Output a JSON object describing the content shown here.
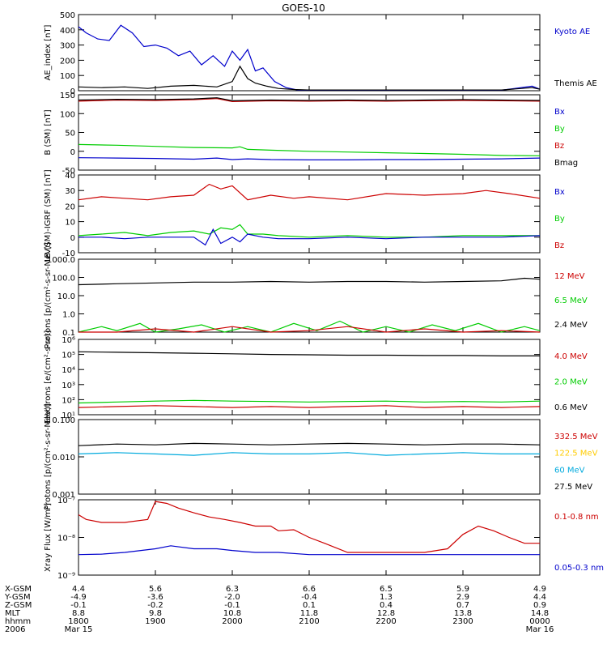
{
  "title": "GOES-10",
  "x_axis": {
    "ticks": [
      "1800",
      "1900",
      "2000",
      "2100",
      "2200",
      "2300",
      "0000"
    ],
    "rows": [
      {
        "label": "X-GSM",
        "values": [
          "4.4",
          "5.6",
          "6.3",
          "6.6",
          "6.5",
          "5.9",
          "4.9"
        ]
      },
      {
        "label": "Y-GSM",
        "values": [
          "-4.9",
          "-3.6",
          "-2.0",
          "-0.4",
          "1.3",
          "2.9",
          "4.4"
        ]
      },
      {
        "label": "Z-GSM",
        "values": [
          "-0.1",
          "-0.2",
          "-0.1",
          "0.1",
          "0.4",
          "0.7",
          "0.9"
        ]
      },
      {
        "label": "MLT",
        "values": [
          "8.8",
          "9.8",
          "10.8",
          "11.8",
          "12.8",
          "13.8",
          "14.8"
        ]
      },
      {
        "label": "hhmm",
        "values": [
          "1800",
          "1900",
          "2000",
          "2100",
          "2200",
          "2300",
          "0000"
        ]
      },
      {
        "label": "2006",
        "values": [
          "Mar 15",
          "",
          "",
          "",
          "",
          "",
          "Mar 16"
        ]
      }
    ]
  },
  "colors": {
    "blue": "#0000cc",
    "red": "#cc0000",
    "green": "#00cc00",
    "black": "#000000",
    "cyan": "#00aadd",
    "yellow": "#ffcc00"
  },
  "chart_data": [
    {
      "type": "line",
      "panel": 1,
      "ylabel": "AE_index [nT]",
      "ylim": [
        0,
        500
      ],
      "yticks": [
        0,
        100,
        200,
        300,
        400,
        500
      ],
      "legend": [
        {
          "name": "Kyoto AE",
          "color": "#0000cc"
        },
        {
          "name": "Themis AE",
          "color": "#000000"
        }
      ],
      "series": [
        {
          "name": "Kyoto AE",
          "color": "#0000cc",
          "x": [
            18.0,
            18.1,
            18.25,
            18.4,
            18.55,
            18.7,
            18.85,
            19.0,
            19.15,
            19.3,
            19.45,
            19.6,
            19.75,
            19.9,
            20.0,
            20.1,
            20.2,
            20.3,
            20.4,
            20.55,
            20.7,
            20.85,
            21.0,
            21.5,
            22.0,
            22.5,
            23.0,
            23.5,
            23.9,
            24.0
          ],
          "y": [
            420,
            380,
            340,
            330,
            430,
            380,
            290,
            300,
            280,
            230,
            260,
            170,
            230,
            160,
            260,
            200,
            270,
            130,
            150,
            60,
            20,
            5,
            3,
            3,
            3,
            4,
            3,
            3,
            30,
            10
          ]
        },
        {
          "name": "Themis AE",
          "color": "#000000",
          "x": [
            18.0,
            18.3,
            18.6,
            18.9,
            19.2,
            19.5,
            19.8,
            20.0,
            20.1,
            20.2,
            20.3,
            20.45,
            20.6,
            20.8,
            21.0,
            21.5,
            22.0,
            22.5,
            23.0,
            23.5,
            23.9,
            24.0
          ],
          "y": [
            25,
            20,
            25,
            15,
            30,
            35,
            25,
            60,
            160,
            80,
            50,
            30,
            15,
            8,
            5,
            5,
            5,
            5,
            5,
            5,
            20,
            10
          ]
        }
      ]
    },
    {
      "type": "line",
      "panel": 2,
      "ylabel": "B (SM) [nT]",
      "ylim": [
        -50,
        150
      ],
      "yticks": [
        -50,
        0,
        50,
        100,
        150
      ],
      "legend": [
        {
          "name": "Bx",
          "color": "#0000cc"
        },
        {
          "name": "By",
          "color": "#00cc00"
        },
        {
          "name": "Bz",
          "color": "#cc0000"
        },
        {
          "name": "Bmag",
          "color": "#000000"
        }
      ],
      "series": [
        {
          "name": "Bz",
          "color": "#cc0000",
          "x": [
            18.0,
            18.5,
            19.0,
            19.5,
            19.8,
            20.0,
            20.5,
            21.0,
            21.5,
            22.0,
            22.5,
            23.0,
            23.5,
            24.0
          ],
          "y": [
            133,
            136,
            135,
            137,
            140,
            132,
            134,
            133,
            134,
            133,
            134,
            135,
            134,
            133
          ]
        },
        {
          "name": "Bmag",
          "color": "#000000",
          "x": [
            18.0,
            18.5,
            19.0,
            19.5,
            19.8,
            20.0,
            20.5,
            21.0,
            21.5,
            22.0,
            22.5,
            23.0,
            23.5,
            24.0
          ],
          "y": [
            136,
            138,
            137,
            139,
            142,
            134,
            136,
            135,
            136,
            135,
            136,
            137,
            136,
            135
          ]
        },
        {
          "name": "By",
          "color": "#00cc00",
          "x": [
            18.0,
            18.5,
            19.0,
            19.5,
            20.0,
            20.1,
            20.2,
            20.5,
            21.0,
            21.5,
            22.0,
            22.5,
            23.0,
            23.5,
            24.0
          ],
          "y": [
            18,
            16,
            13,
            10,
            9,
            12,
            5,
            3,
            0,
            -2,
            -4,
            -6,
            -8,
            -11,
            -12
          ]
        },
        {
          "name": "Bx",
          "color": "#0000cc",
          "x": [
            18.0,
            18.5,
            19.0,
            19.5,
            19.8,
            20.0,
            20.2,
            20.5,
            21.0,
            21.5,
            22.0,
            22.5,
            23.0,
            23.5,
            24.0
          ],
          "y": [
            -17,
            -18,
            -19,
            -21,
            -18,
            -22,
            -20,
            -22,
            -23,
            -23,
            -22,
            -22,
            -21,
            -20,
            -18
          ]
        }
      ]
    },
    {
      "type": "line",
      "panel": 3,
      "ylabel": "B (SM)-IGRF (SM) [nT]",
      "ylim": [
        -10,
        40
      ],
      "yticks": [
        -10,
        0,
        10,
        20,
        30,
        40
      ],
      "legend": [
        {
          "name": "Bx",
          "color": "#0000cc"
        },
        {
          "name": "By",
          "color": "#00cc00"
        },
        {
          "name": "Bz",
          "color": "#cc0000"
        }
      ],
      "series": [
        {
          "name": "Bz",
          "color": "#cc0000",
          "x": [
            18.0,
            18.3,
            18.6,
            18.9,
            19.2,
            19.5,
            19.7,
            19.85,
            20.0,
            20.2,
            20.5,
            20.8,
            21.0,
            21.5,
            22.0,
            22.5,
            23.0,
            23.3,
            23.6,
            24.0
          ],
          "y": [
            24,
            26,
            25,
            24,
            26,
            27,
            34,
            31,
            33,
            24,
            27,
            25,
            26,
            24,
            28,
            27,
            28,
            30,
            28,
            25
          ]
        },
        {
          "name": "By",
          "color": "#00cc00",
          "x": [
            18.0,
            18.3,
            18.6,
            18.9,
            19.2,
            19.5,
            19.7,
            19.85,
            20.0,
            20.1,
            20.2,
            20.4,
            20.6,
            21.0,
            21.5,
            22.0,
            22.5,
            23.0,
            23.5,
            24.0
          ],
          "y": [
            1,
            2,
            3,
            1,
            3,
            4,
            2,
            6,
            5,
            8,
            2,
            2,
            1,
            0,
            1,
            0,
            0,
            1,
            1,
            1
          ]
        },
        {
          "name": "Bx",
          "color": "#0000cc",
          "x": [
            18.0,
            18.3,
            18.6,
            18.9,
            19.2,
            19.5,
            19.65,
            19.75,
            19.85,
            20.0,
            20.1,
            20.2,
            20.4,
            20.6,
            21.0,
            21.5,
            22.0,
            22.5,
            23.0,
            23.5,
            24.0
          ],
          "y": [
            0,
            0,
            -1,
            0,
            0,
            0,
            -5,
            5,
            -4,
            0,
            -3,
            2,
            0,
            -1,
            -1,
            0,
            -1,
            0,
            0,
            0,
            1
          ]
        }
      ]
    },
    {
      "type": "line",
      "panel": 4,
      "yscale": "log",
      "ylabel": "Protons [p/(cm²-s-sr-MeV)]",
      "ylim": [
        0.1,
        1000.0
      ],
      "yticks": [
        "0.1",
        "1.0",
        "10.0",
        "100.0",
        "1000.0"
      ],
      "legend": [
        {
          "name": "12 MeV",
          "color": "#cc0000"
        },
        {
          "name": "6.5 MeV",
          "color": "#00cc00"
        },
        {
          "name": "2.4 MeV",
          "color": "#000000"
        }
      ],
      "series": [
        {
          "name": "2.4 MeV",
          "color": "#000000",
          "x": [
            18.0,
            18.5,
            19.0,
            19.5,
            20.0,
            20.5,
            21.0,
            21.5,
            22.0,
            22.5,
            23.0,
            23.5,
            23.8,
            24.0
          ],
          "y": [
            40,
            45,
            50,
            55,
            55,
            60,
            55,
            60,
            60,
            55,
            60,
            65,
            90,
            80
          ]
        },
        {
          "name": "6.5 MeV",
          "color": "#00cc00",
          "x": [
            18.0,
            18.3,
            18.5,
            18.8,
            19.0,
            19.3,
            19.6,
            19.9,
            20.2,
            20.5,
            20.8,
            21.1,
            21.4,
            21.7,
            22.0,
            22.3,
            22.6,
            22.9,
            23.2,
            23.5,
            23.8,
            24.0
          ],
          "y": [
            0.1,
            0.2,
            0.12,
            0.3,
            0.1,
            0.15,
            0.25,
            0.1,
            0.2,
            0.1,
            0.3,
            0.12,
            0.4,
            0.1,
            0.2,
            0.1,
            0.25,
            0.12,
            0.3,
            0.1,
            0.2,
            0.12
          ]
        },
        {
          "name": "12 MeV",
          "color": "#cc0000",
          "x": [
            18.0,
            18.5,
            19.0,
            19.5,
            20.0,
            20.5,
            21.0,
            21.5,
            22.0,
            22.5,
            23.0,
            23.5,
            24.0
          ],
          "y": [
            0.1,
            0.1,
            0.15,
            0.1,
            0.2,
            0.1,
            0.12,
            0.2,
            0.1,
            0.15,
            0.1,
            0.12,
            0.1
          ]
        }
      ]
    },
    {
      "type": "line",
      "panel": 5,
      "yscale": "log",
      "ylabel": "Electrons [e/(cm²-s-sr)]",
      "ylim": [
        10,
        1000000
      ],
      "yticks": [
        "10¹",
        "10²",
        "10³",
        "10⁴",
        "10⁵",
        "10⁶"
      ],
      "legend": [
        {
          "name": "4.0 MeV",
          "color": "#cc0000"
        },
        {
          "name": "2.0 MeV",
          "color": "#00cc00"
        },
        {
          "name": "0.6 MeV",
          "color": "#000000"
        }
      ],
      "series": [
        {
          "name": "0.6 MeV",
          "color": "#000000",
          "x": [
            18.0,
            18.5,
            19.0,
            19.5,
            20.0,
            20.5,
            21.0,
            21.5,
            22.0,
            22.5,
            23.0,
            23.5,
            24.0
          ],
          "y": [
            150000,
            140000,
            130000,
            120000,
            110000,
            100000,
            95000,
            90000,
            90000,
            85000,
            85000,
            80000,
            80000
          ]
        },
        {
          "name": "2.0 MeV",
          "color": "#00cc00",
          "x": [
            18.0,
            18.5,
            19.0,
            19.5,
            20.0,
            20.5,
            21.0,
            21.5,
            22.0,
            22.5,
            23.0,
            23.5,
            24.0
          ],
          "y": [
            60,
            70,
            80,
            90,
            80,
            75,
            70,
            75,
            80,
            70,
            75,
            70,
            80
          ]
        },
        {
          "name": "4.0 MeV",
          "color": "#cc0000",
          "x": [
            18.0,
            18.5,
            19.0,
            19.5,
            20.0,
            20.5,
            21.0,
            21.5,
            22.0,
            22.5,
            23.0,
            23.5,
            24.0
          ],
          "y": [
            30,
            35,
            40,
            35,
            30,
            35,
            30,
            35,
            40,
            30,
            35,
            30,
            35
          ]
        }
      ]
    },
    {
      "type": "line",
      "panel": 6,
      "yscale": "log",
      "ylabel": "Protons [p/(cm²-s-sr-MeV)]",
      "ylim": [
        0.001,
        0.1
      ],
      "yticks": [
        "0.001",
        "0.010",
        "0.100"
      ],
      "legend": [
        {
          "name": "332.5 MeV",
          "color": "#cc0000"
        },
        {
          "name": "122.5 MeV",
          "color": "#ffcc00"
        },
        {
          "name": "60 MeV",
          "color": "#00aadd"
        },
        {
          "name": "27.5 MeV",
          "color": "#000000"
        }
      ],
      "series": [
        {
          "name": "27.5 MeV",
          "color": "#000000",
          "x": [
            18.0,
            18.5,
            19.0,
            19.5,
            20.0,
            20.5,
            21.0,
            21.5,
            22.0,
            22.5,
            23.0,
            23.5,
            24.0
          ],
          "y": [
            0.02,
            0.022,
            0.021,
            0.023,
            0.022,
            0.021,
            0.022,
            0.023,
            0.022,
            0.021,
            0.022,
            0.022,
            0.021
          ]
        },
        {
          "name": "60 MeV",
          "color": "#00aadd",
          "x": [
            18.0,
            18.5,
            19.0,
            19.5,
            20.0,
            20.5,
            21.0,
            21.5,
            22.0,
            22.5,
            23.0,
            23.5,
            24.0
          ],
          "y": [
            0.012,
            0.013,
            0.012,
            0.011,
            0.013,
            0.012,
            0.012,
            0.013,
            0.011,
            0.012,
            0.013,
            0.012,
            0.012
          ]
        }
      ]
    },
    {
      "type": "line",
      "panel": 7,
      "yscale": "log",
      "ylabel": "Xray Flux [W/m²]",
      "ylim": [
        1e-09,
        1e-07
      ],
      "yticks": [
        "10⁻⁹",
        "10⁻⁸",
        "10⁻⁷"
      ],
      "legend": [
        {
          "name": "0.1-0.8 nm",
          "color": "#cc0000"
        },
        {
          "name": "0.05-0.3 nm",
          "color": "#0000cc"
        }
      ],
      "series": [
        {
          "name": "0.1-0.8 nm",
          "color": "#cc0000",
          "x": [
            18.0,
            18.1,
            18.3,
            18.6,
            18.9,
            19.0,
            19.15,
            19.3,
            19.5,
            19.7,
            19.9,
            20.1,
            20.3,
            20.5,
            20.6,
            20.8,
            21.0,
            21.2,
            21.5,
            22.0,
            22.5,
            22.8,
            23.0,
            23.2,
            23.4,
            23.6,
            23.8,
            24.0
          ],
          "y": [
            4e-08,
            3e-08,
            2.5e-08,
            2.5e-08,
            3e-08,
            9e-08,
            8e-08,
            6e-08,
            4.5e-08,
            3.5e-08,
            3e-08,
            2.5e-08,
            2e-08,
            2e-08,
            1.5e-08,
            1.6e-08,
            1e-08,
            7e-09,
            4e-09,
            4e-09,
            4e-09,
            5e-09,
            1.2e-08,
            2e-08,
            1.5e-08,
            1e-08,
            7e-09,
            7e-09
          ]
        },
        {
          "name": "0.05-0.3 nm",
          "color": "#0000cc",
          "x": [
            18.0,
            18.3,
            18.6,
            19.0,
            19.2,
            19.5,
            19.8,
            20.0,
            20.3,
            20.6,
            21.0,
            21.5,
            22.0,
            22.5,
            23.0,
            23.5,
            24.0
          ],
          "y": [
            3.5e-09,
            3.6e-09,
            4e-09,
            5e-09,
            6e-09,
            5e-09,
            5e-09,
            4.5e-09,
            4e-09,
            4e-09,
            3.5e-09,
            3.5e-09,
            3.5e-09,
            3.5e-09,
            3.5e-09,
            3.5e-09,
            3.5e-09
          ]
        }
      ]
    }
  ]
}
